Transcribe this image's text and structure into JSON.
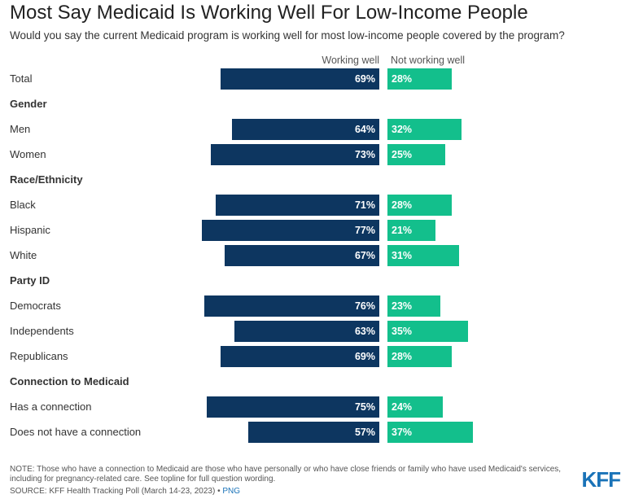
{
  "title": "Most Say Medicaid Is Working Well For Low-Income People",
  "subtitle": "Would you say the current Medicaid program is working well for most low-income people covered by the program?",
  "note": "NOTE: Those who have a connection to Medicaid are those who have personally or who have close friends or family who have used Medicaid's services, including for pregnancy-related care. See topline for full question wording.",
  "source_text": "SOURCE: KFF Health Tracking Poll (March 14-23, 2023)",
  "source_sep": " • ",
  "png_label": "PNG",
  "logo": "KFF",
  "colors": {
    "working_well": "#0d3660",
    "not_working_well": "#13bf8c"
  },
  "chart_data": {
    "type": "bar",
    "orientation": "horizontal-diverging",
    "title": "Most Say Medicaid Is Working Well For Low-Income People",
    "legend_placement": "top",
    "grid": false,
    "xlim": [
      0,
      100
    ],
    "series": [
      {
        "name": "Working well",
        "color": "#0d3660"
      },
      {
        "name": "Not working well",
        "color": "#13bf8c"
      }
    ],
    "rows": [
      {
        "label": "Total",
        "working_well": 69,
        "not_working_well": 28
      },
      {
        "label": "Gender",
        "group": true
      },
      {
        "label": "Men",
        "working_well": 64,
        "not_working_well": 32
      },
      {
        "label": "Women",
        "working_well": 73,
        "not_working_well": 25
      },
      {
        "label": "Race/Ethnicity",
        "group": true
      },
      {
        "label": "Black",
        "working_well": 71,
        "not_working_well": 28
      },
      {
        "label": "Hispanic",
        "working_well": 77,
        "not_working_well": 21
      },
      {
        "label": "White",
        "working_well": 67,
        "not_working_well": 31
      },
      {
        "label": "Party ID",
        "group": true
      },
      {
        "label": "Democrats",
        "working_well": 76,
        "not_working_well": 23
      },
      {
        "label": "Independents",
        "working_well": 63,
        "not_working_well": 35
      },
      {
        "label": "Republicans",
        "working_well": 69,
        "not_working_well": 28
      },
      {
        "label": "Connection to Medicaid",
        "group": true
      },
      {
        "label": "Has a connection",
        "working_well": 75,
        "not_working_well": 24
      },
      {
        "label": "Does not have a connection",
        "working_well": 57,
        "not_working_well": 37
      }
    ]
  }
}
